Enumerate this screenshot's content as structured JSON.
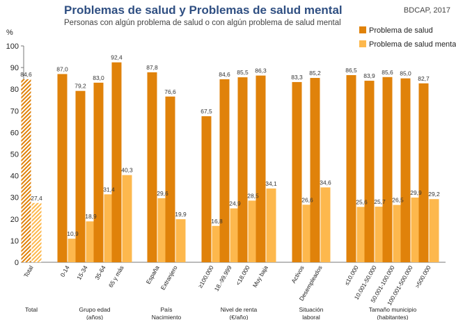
{
  "header": {
    "title": "Problemas de salud y Problemas de salud mental",
    "subtitle": "Personas con algún problema de salud o con algún problema de salud mental",
    "source": "BDCAP, 2017"
  },
  "colors": {
    "salud": "#e0820a",
    "mental": "#fdb84d",
    "title": "#2f4f82"
  },
  "chart_data": {
    "type": "bar",
    "title": "Problemas de salud y Problemas de salud mental",
    "subtitle": "Personas con algún problema de salud o con algún problema de salud mental",
    "ylabel": "%",
    "ylim": [
      0,
      100
    ],
    "yticks": [
      0,
      10,
      20,
      30,
      40,
      50,
      60,
      70,
      80,
      90,
      100
    ],
    "grid": false,
    "legend_position": "top-right",
    "series": [
      {
        "name": "Problema de salud",
        "color": "#e0820a"
      },
      {
        "name": "Problema de salud mental",
        "color": "#fdb84d"
      }
    ],
    "groups": [
      {
        "label": [
          "Total"
        ],
        "categories": [
          {
            "name": "Total",
            "salud": 84.6,
            "mental": 27.4,
            "salud_label": "84,6",
            "mental_label": "27,4",
            "hatched": true
          }
        ]
      },
      {
        "label": [
          "Grupo edad",
          "(años)"
        ],
        "categories": [
          {
            "name": "0-14",
            "salud": 87.0,
            "mental": 10.9,
            "salud_label": "87,0",
            "mental_label": "10,9"
          },
          {
            "name": "15-34",
            "salud": 79.2,
            "mental": 18.9,
            "salud_label": "79,2",
            "mental_label": "18,9"
          },
          {
            "name": "35-64",
            "salud": 83.0,
            "mental": 31.4,
            "salud_label": "83,0",
            "mental_label": "31,4"
          },
          {
            "name": "65 y más",
            "salud": 92.4,
            "mental": 40.3,
            "salud_label": "92,4",
            "mental_label": "40,3"
          }
        ]
      },
      {
        "label": [
          "País",
          "Nacimiento"
        ],
        "categories": [
          {
            "name": "España",
            "salud": 87.8,
            "mental": 29.6,
            "salud_label": "87,8",
            "mental_label": "29,6"
          },
          {
            "name": "Extranjero",
            "salud": 76.6,
            "mental": 19.9,
            "salud_label": "76,6",
            "mental_label": "19,9"
          }
        ]
      },
      {
        "label": [
          "Nivel de renta",
          "(€/año)"
        ],
        "categories": [
          {
            "name": "≥100.000",
            "salud": 67.5,
            "mental": 16.8,
            "salud_label": "67,5",
            "mental_label": "16,8"
          },
          {
            "name": "18.-99.999",
            "salud": 84.6,
            "mental": 24.9,
            "salud_label": "84,6",
            "mental_label": "24,9"
          },
          {
            "name": "<18.000",
            "salud": 85.5,
            "mental": 28.5,
            "salud_label": "85,5",
            "mental_label": "28,5"
          },
          {
            "name": "Muy baja",
            "salud": 86.3,
            "mental": 34.1,
            "salud_label": "86,3",
            "mental_label": "34,1"
          }
        ]
      },
      {
        "label": [
          "Situación",
          "laboral"
        ],
        "categories": [
          {
            "name": "Activos",
            "salud": 83.3,
            "mental": 26.6,
            "salud_label": "83,3",
            "mental_label": "26,6"
          },
          {
            "name": "Desempleados",
            "salud": 85.2,
            "mental": 34.6,
            "salud_label": "85,2",
            "mental_label": "34,6"
          }
        ]
      },
      {
        "label": [
          "Tamaño municipio",
          "(habitantes)"
        ],
        "categories": [
          {
            "name": "≤10.000",
            "salud": 86.5,
            "mental": 25.6,
            "salud_label": "86,5",
            "mental_label": "25,6"
          },
          {
            "name": "10.001-50.000",
            "salud": 83.9,
            "mental": 25.7,
            "salud_label": "83,9",
            "mental_label": "25,7"
          },
          {
            "name": "50.001-100.000",
            "salud": 85.6,
            "mental": 26.5,
            "salud_label": "85,6",
            "mental_label": "26,5"
          },
          {
            "name": "100.001-500.000",
            "salud": 85.0,
            "mental": 29.9,
            "salud_label": "85,0",
            "mental_label": "29,9"
          },
          {
            "name": ">500.000",
            "salud": 82.7,
            "mental": 29.2,
            "salud_label": "82,7",
            "mental_label": "29,2"
          }
        ]
      }
    ]
  }
}
